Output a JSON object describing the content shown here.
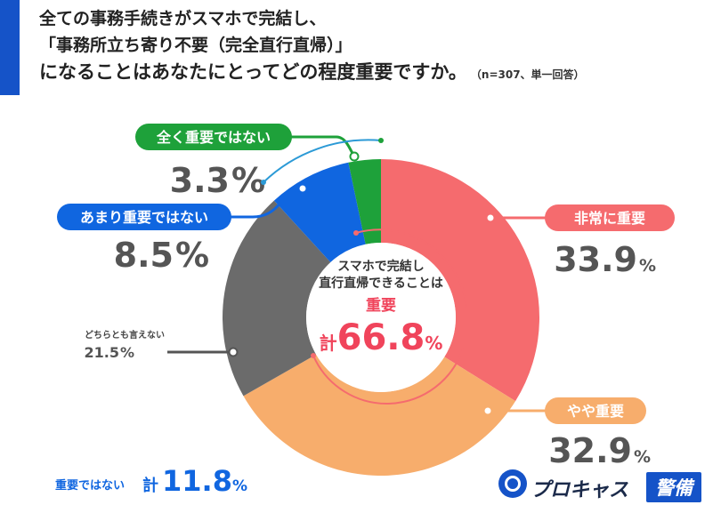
{
  "title": {
    "line1": "全ての事務手続きがスマホで完結し、",
    "line2": "「事務所立ち寄り不要（完全直行直帰）」",
    "line3": "になることはあなたにとってどの程度重要ですか。",
    "note": "（n=307、単一回答）"
  },
  "center": {
    "line1": "スマホで完結し",
    "line2": "直行直帰できることは",
    "emphasis": "重要",
    "total_prefix": "計",
    "total_value": "66.8",
    "total_unit": "%"
  },
  "not_important_total": {
    "label": "重要ではない",
    "prefix": "計",
    "value": "11.8",
    "unit": "%"
  },
  "brand": {
    "name": "プロキャス",
    "badge": "警備"
  },
  "colors": {
    "very_important": "#f56b6e",
    "somewhat_important": "#f7ad6c",
    "neutral": "#6b6b6b",
    "not_very_important": "#1066e0",
    "not_important_at_all": "#1ea13a",
    "title_accent": "#1553c8"
  },
  "chart_data": {
    "type": "pie",
    "variant": "donut",
    "slices": [
      {
        "label": "非常に重要",
        "value": 33.9,
        "display": "33.9",
        "unit": "%",
        "color": "#f56b6e"
      },
      {
        "label": "やや重要",
        "value": 32.9,
        "display": "32.9",
        "unit": "%",
        "color": "#f7ad6c"
      },
      {
        "label": "どちらとも言えない",
        "value": 21.5,
        "display": "21.5",
        "unit": "%",
        "color": "#6b6b6b"
      },
      {
        "label": "あまり重要ではない",
        "value": 8.5,
        "display": "8.5",
        "unit": "%",
        "color": "#1066e0"
      },
      {
        "label": "全く重要ではない",
        "value": 3.3,
        "display": "3.3",
        "unit": "%",
        "color": "#1ea13a"
      }
    ]
  }
}
